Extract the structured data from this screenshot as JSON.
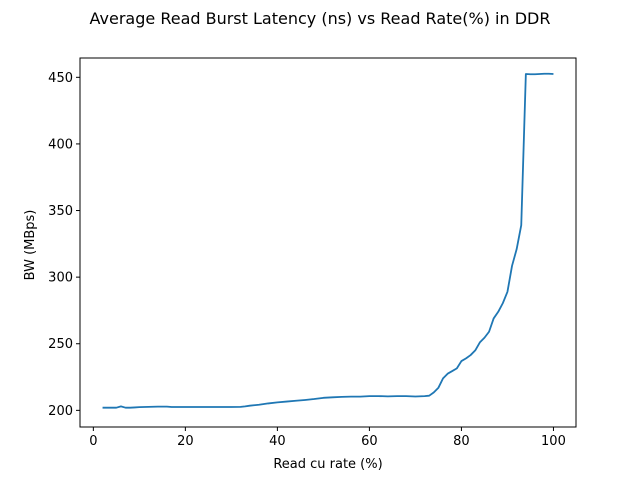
{
  "chart_data": {
    "type": "line",
    "title": "Average Read Burst Latency (ns) vs Read Rate(%) in DDR",
    "xlabel": "Read cu rate (%)",
    "ylabel": "BW (MBps)",
    "xlim": [
      -2.9,
      104.9
    ],
    "ylim": [
      187.5,
      464.5
    ],
    "xticks": [
      0,
      20,
      40,
      60,
      80,
      100
    ],
    "yticks": [
      200,
      250,
      300,
      350,
      400,
      450
    ],
    "grid": false,
    "series": [
      {
        "color": "#1f77b4",
        "x": [
          2,
          3,
          4,
          5,
          6,
          7,
          8,
          9,
          10,
          12,
          14,
          16,
          17,
          18,
          20,
          22,
          24,
          26,
          28,
          30,
          32,
          33,
          34,
          36,
          38,
          40,
          42,
          44,
          46,
          48,
          50,
          52,
          54,
          56,
          58,
          60,
          62,
          64,
          66,
          68,
          70,
          72,
          73,
          74,
          75,
          76,
          77,
          78,
          79,
          80,
          81,
          82,
          83,
          84,
          85,
          86,
          87,
          88,
          89,
          90,
          91,
          92,
          93,
          94,
          95,
          96,
          97,
          98,
          99,
          100
        ],
        "values": [
          202,
          202,
          202,
          202,
          203,
          202,
          202,
          202.2,
          202.4,
          202.6,
          202.8,
          202.8,
          202.5,
          202.5,
          202.5,
          202.5,
          202.5,
          202.5,
          202.5,
          202.5,
          202.6,
          203,
          203.5,
          204.2,
          205.2,
          206,
          206.6,
          207.2,
          207.8,
          208.5,
          209.4,
          209.8,
          210.1,
          210.3,
          210.3,
          210.7,
          210.7,
          210.5,
          210.7,
          210.7,
          210.4,
          210.7,
          211,
          213.5,
          217,
          224,
          227.5,
          229.5,
          231.5,
          237,
          239,
          241.5,
          245,
          251,
          254.5,
          259,
          269,
          274,
          280.5,
          289,
          308.5,
          321,
          339,
          452.5,
          452.3,
          452.3,
          452.5,
          452.7,
          452.7,
          452.5
        ]
      }
    ]
  }
}
